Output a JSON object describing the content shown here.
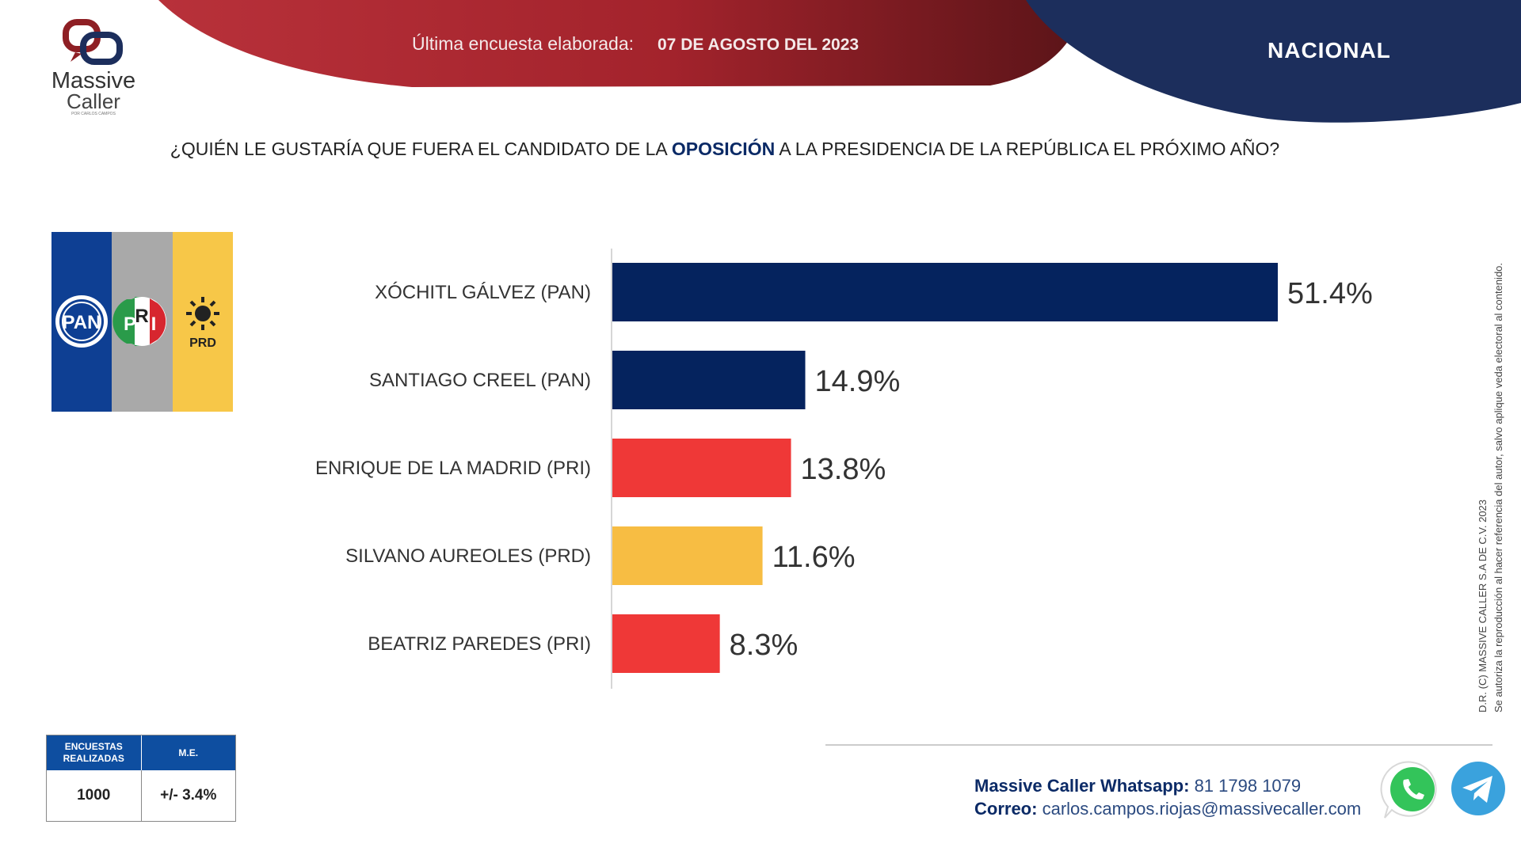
{
  "brand": {
    "line1": "Massive",
    "line2": "Caller",
    "tagline": "POR CARLOS CAMPOS"
  },
  "header": {
    "survey_label": "Última encuesta elaborada:",
    "survey_date": "07 DE AGOSTO DEL 2023",
    "region": "NACIONAL"
  },
  "question": {
    "before": "¿QUIÉN LE GUSTARÍA QUE FUERA EL CANDIDATO DE LA ",
    "highlight": "OPOSICIÓN",
    "after": " A LA PRESIDENCIA  DE LA REPÚBLICA EL PRÓXIMO AÑO?"
  },
  "flag": {
    "pan": "PAN",
    "pri_p": "P",
    "pri_r": "R",
    "pri_i": "I",
    "prd": "PRD"
  },
  "chart_data": {
    "type": "bar",
    "orientation": "horizontal",
    "categories": [
      "XÓCHITL GÁLVEZ (PAN)",
      "SANTIAGO CREEL (PAN)",
      "ENRIQUE DE LA MADRID (PRI)",
      "SILVANO AUREOLES (PRD)",
      "BEATRIZ PAREDES (PRI)"
    ],
    "values": [
      51.4,
      14.9,
      13.8,
      11.6,
      8.3
    ],
    "value_labels": [
      "51.4%",
      "14.9%",
      "13.8%",
      "11.6%",
      "8.3%"
    ],
    "colors": [
      "#05235e",
      "#05235e",
      "#ef3837",
      "#f7bd43",
      "#ef3837"
    ],
    "unit": "%",
    "xlim": [
      0,
      51.4
    ]
  },
  "stats": {
    "surveys_header": "ENCUESTAS REALIZADAS",
    "moe_header": "M.E.",
    "surveys_value": "1000",
    "moe_value": "+/- 3.4%"
  },
  "contact": {
    "whatsapp_label": "Massive Caller Whatsapp:",
    "whatsapp_value": "81 1798  1079",
    "email_label": "Correo:",
    "email_value": "carlos.campos.riojas@massivecaller.com"
  },
  "legal": {
    "line1": "D.R. (C) MASSIVE CALLER S.A DE C.V.  2023",
    "line2": "Se autoriza la reproducción al hacer referencia del autor, salvo aplique veda electoral al contenido."
  },
  "colors": {
    "navy": "#05235e",
    "red": "#ef3837",
    "yellow": "#f7bd43",
    "header_red": "#a3232c",
    "header_navy": "#1c2e5c"
  }
}
